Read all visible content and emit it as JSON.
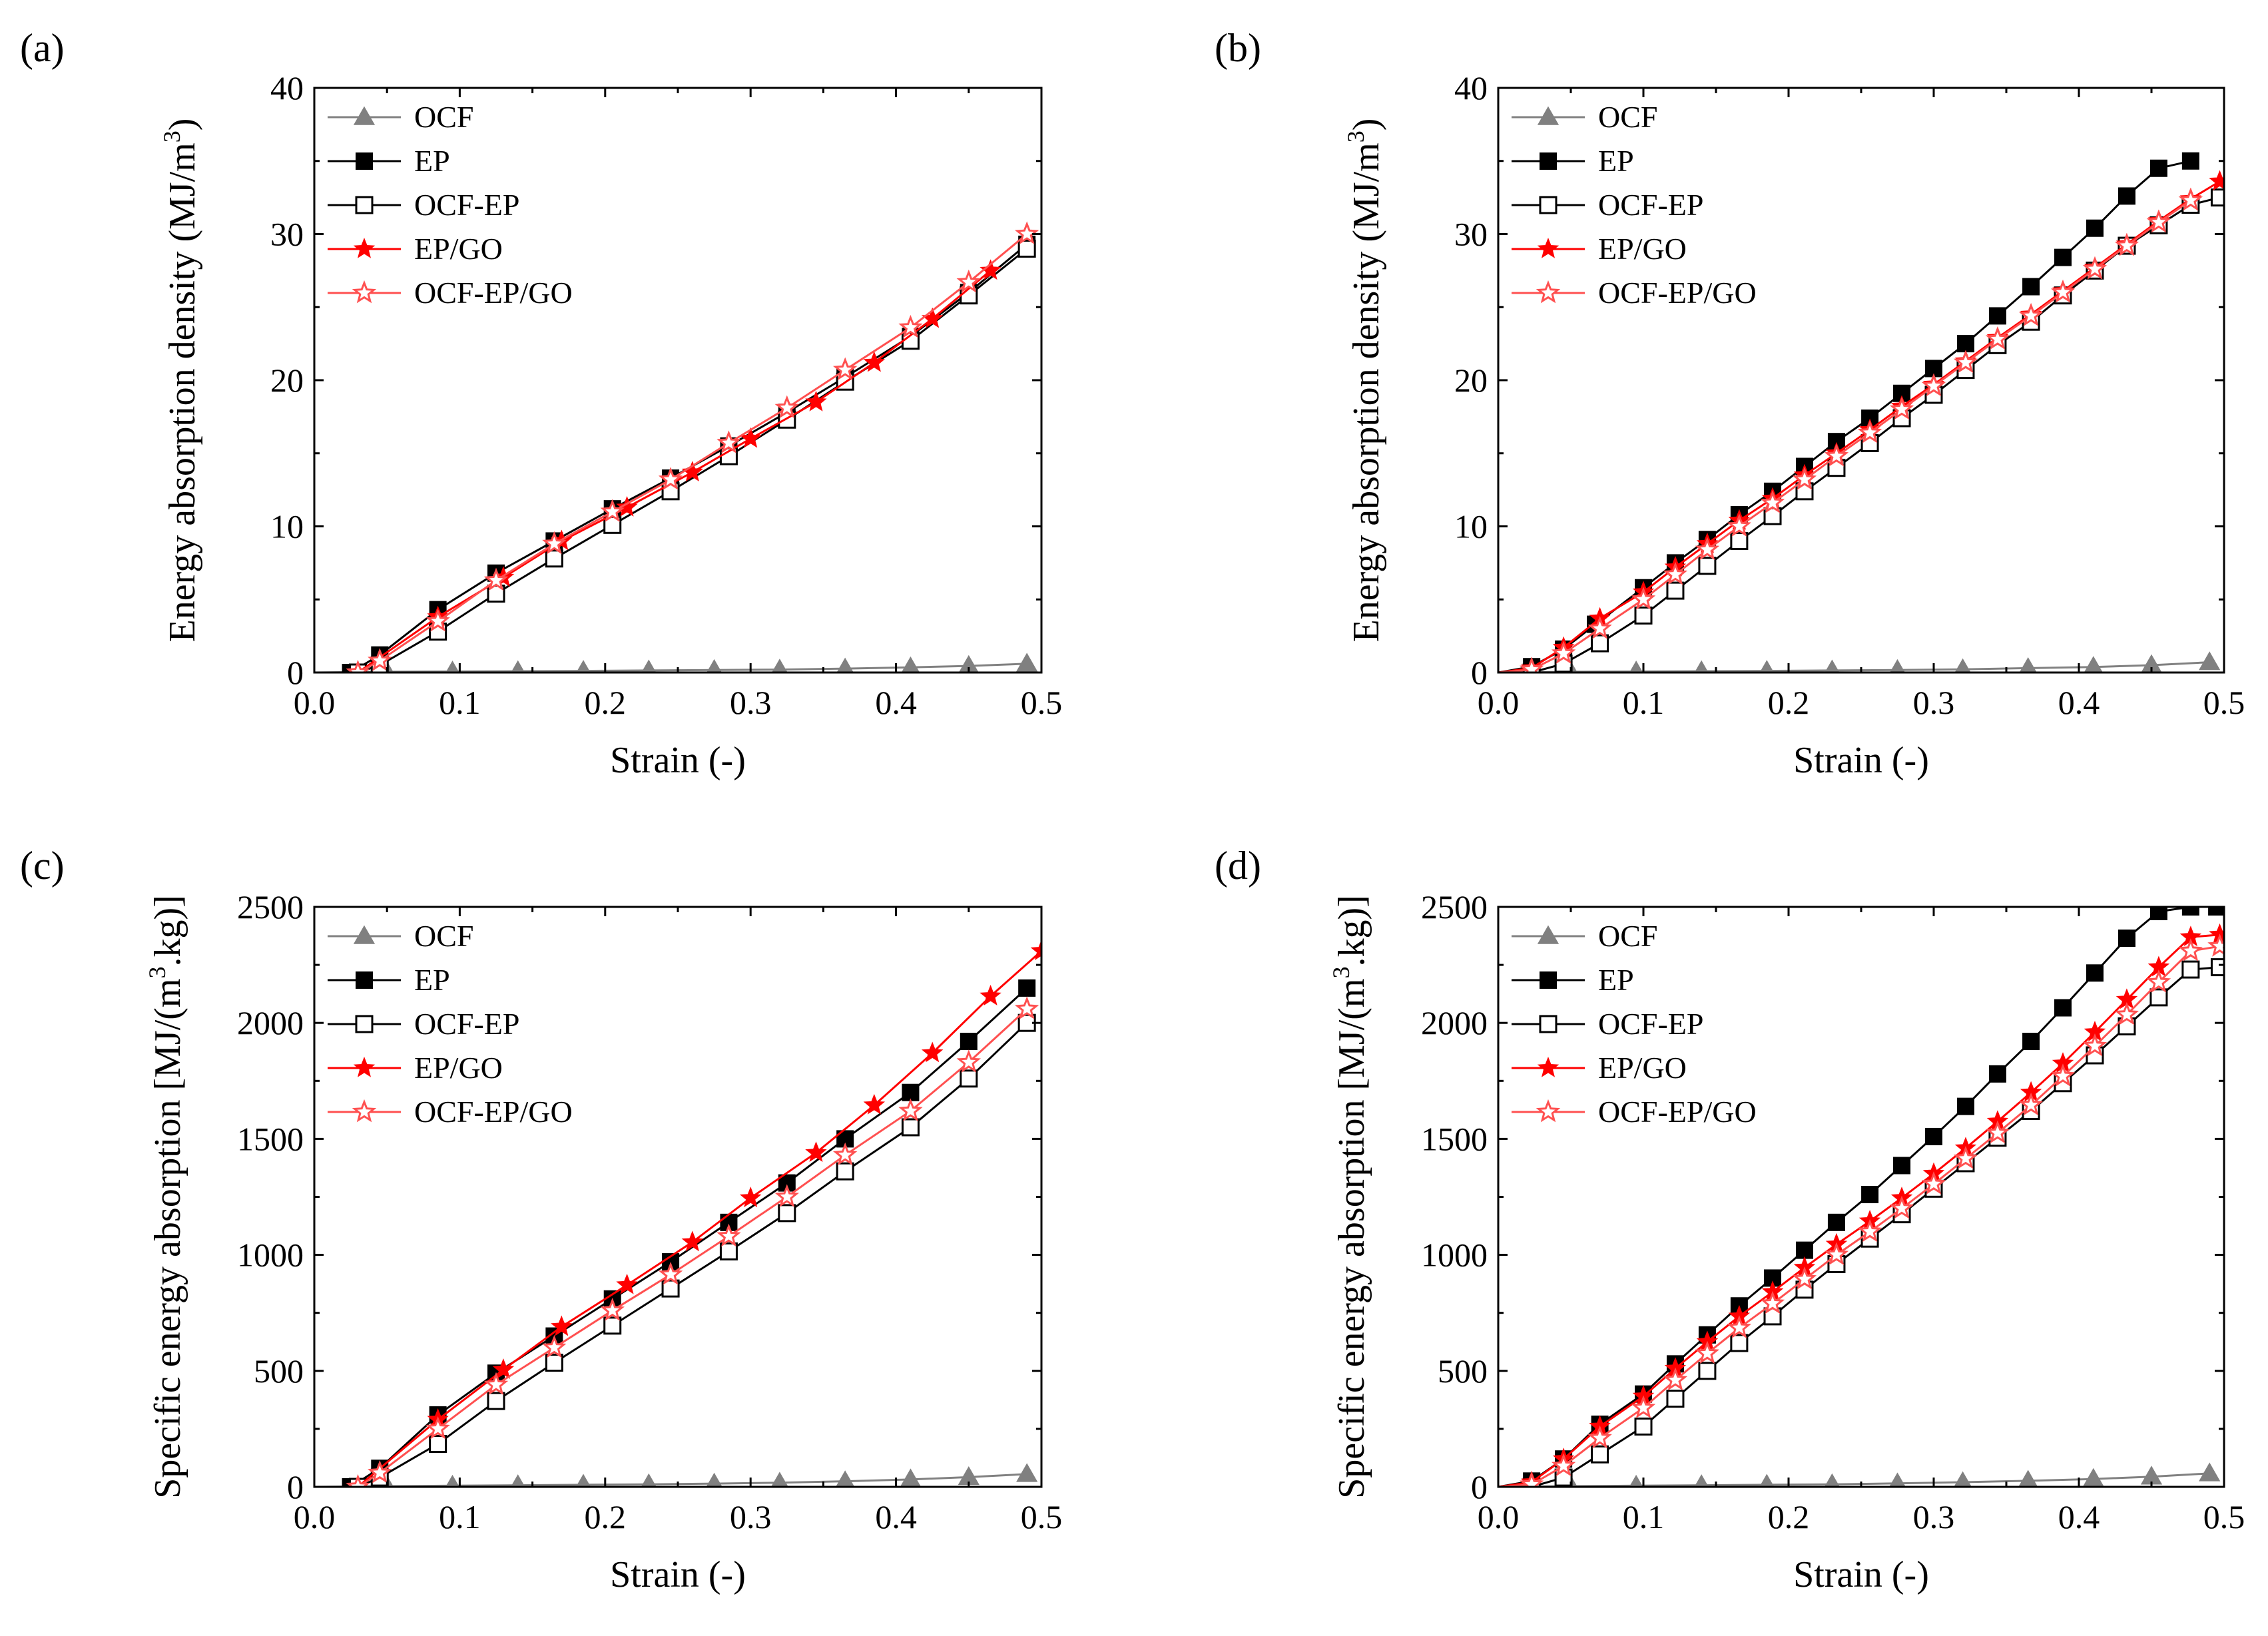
{
  "colors": {
    "black": "#000000",
    "gray": "#808080",
    "red": "#ff0000",
    "lightred": "#ff5050"
  },
  "chart_data": [
    {
      "panel": "(a)",
      "type": "line",
      "ylabel_main": "Energy absorption density (MJ/m",
      "ylabel_sup": "3",
      "ylabel_tail": ")",
      "xlabel": "Strain (-)",
      "xlim": [
        0.0,
        0.5
      ],
      "ylim": [
        0,
        40
      ],
      "xticks": [
        "0.0",
        "0.1",
        "0.2",
        "0.3",
        "0.4",
        "0.5"
      ],
      "yticks": [
        "0",
        "10",
        "20",
        "30",
        "40"
      ],
      "legend_position": "top-left",
      "series": [
        {
          "name": "OCF",
          "marker": "triangle",
          "color": "#808080",
          "x": [
            0.0,
            0.05,
            0.095,
            0.14,
            0.185,
            0.23,
            0.275,
            0.32,
            0.365,
            0.41,
            0.45,
            0.49
          ],
          "y": [
            0,
            0.05,
            0.07,
            0.09,
            0.11,
            0.14,
            0.17,
            0.2,
            0.27,
            0.35,
            0.45,
            0.6
          ]
        },
        {
          "name": "EP",
          "marker": "square-filled",
          "color": "#000000",
          "x": [
            0.0,
            0.025,
            0.045,
            0.085,
            0.125,
            0.165,
            0.205,
            0.245,
            0.285,
            0.325,
            0.365,
            0.41,
            0.45,
            0.49
          ],
          "y": [
            0,
            0.0,
            1.2,
            4.3,
            6.8,
            9.0,
            11.2,
            13.3,
            15.5,
            17.8,
            20.2,
            23.0,
            26.0,
            29.3
          ]
        },
        {
          "name": "OCF-EP",
          "marker": "square-open",
          "color": "#000000",
          "x": [
            0.0,
            0.03,
            0.045,
            0.085,
            0.125,
            0.165,
            0.205,
            0.245,
            0.285,
            0.325,
            0.365,
            0.41,
            0.45,
            0.49
          ],
          "y": [
            0,
            0.0,
            0.5,
            2.8,
            5.4,
            7.8,
            10.1,
            12.4,
            14.8,
            17.3,
            19.9,
            22.7,
            25.8,
            29.0
          ]
        },
        {
          "name": "EP/GO",
          "marker": "star-filled",
          "color": "#ff0000",
          "x": [
            0.0,
            0.03,
            0.085,
            0.13,
            0.17,
            0.215,
            0.26,
            0.3,
            0.345,
            0.385,
            0.425,
            0.465
          ],
          "y": [
            0,
            0.0,
            3.8,
            6.5,
            9.0,
            11.3,
            13.7,
            16.0,
            18.5,
            21.2,
            24.2,
            27.5
          ]
        },
        {
          "name": "OCF-EP/GO",
          "marker": "star-open",
          "color": "#ff5050",
          "x": [
            0.0,
            0.03,
            0.045,
            0.085,
            0.125,
            0.165,
            0.205,
            0.245,
            0.285,
            0.325,
            0.365,
            0.41,
            0.45,
            0.49
          ],
          "y": [
            0,
            0.0,
            0.8,
            3.5,
            6.3,
            8.8,
            11.0,
            13.2,
            15.7,
            18.1,
            20.7,
            23.6,
            26.7,
            30.0
          ]
        }
      ]
    },
    {
      "panel": "(b)",
      "type": "line",
      "ylabel_main": "Energy absorption density (MJ/m",
      "ylabel_sup": "3",
      "ylabel_tail": ")",
      "xlabel": "Strain (-)",
      "xlim": [
        0.0,
        0.5
      ],
      "ylim": [
        0,
        40
      ],
      "xticks": [
        "0.0",
        "0.1",
        "0.2",
        "0.3",
        "0.4",
        "0.5"
      ],
      "yticks": [
        "0",
        "10",
        "20",
        "30",
        "40"
      ],
      "legend_position": "top-left",
      "series": [
        {
          "name": "OCF",
          "marker": "triangle",
          "color": "#808080",
          "x": [
            0.0,
            0.05,
            0.095,
            0.14,
            0.185,
            0.23,
            0.275,
            0.32,
            0.365,
            0.41,
            0.45,
            0.49
          ],
          "y": [
            0,
            0.05,
            0.07,
            0.09,
            0.11,
            0.14,
            0.17,
            0.22,
            0.3,
            0.38,
            0.5,
            0.7
          ]
        },
        {
          "name": "EP",
          "marker": "square-filled",
          "color": "#000000",
          "x": [
            0.0,
            0.023,
            0.045,
            0.067,
            0.1,
            0.122,
            0.144,
            0.166,
            0.189,
            0.211,
            0.233,
            0.256,
            0.278,
            0.3,
            0.322,
            0.344,
            0.367,
            0.389,
            0.411,
            0.433,
            0.455,
            0.477
          ],
          "y": [
            0,
            0.4,
            1.6,
            3.3,
            5.8,
            7.5,
            9.1,
            10.8,
            12.4,
            14.1,
            15.8,
            17.4,
            19.1,
            20.8,
            22.5,
            24.4,
            26.4,
            28.4,
            30.4,
            32.6,
            34.5,
            35.0
          ]
        },
        {
          "name": "OCF-EP",
          "marker": "square-open",
          "color": "#000000",
          "x": [
            0.0,
            0.023,
            0.045,
            0.07,
            0.1,
            0.122,
            0.144,
            0.166,
            0.189,
            0.211,
            0.233,
            0.256,
            0.278,
            0.3,
            0.322,
            0.344,
            0.367,
            0.389,
            0.411,
            0.433,
            0.455,
            0.477,
            0.497
          ],
          "y": [
            0,
            0.0,
            0.6,
            2.0,
            3.9,
            5.6,
            7.3,
            9.0,
            10.7,
            12.4,
            14.0,
            15.7,
            17.4,
            19.0,
            20.7,
            22.4,
            24.0,
            25.8,
            27.5,
            29.2,
            30.6,
            32.0,
            32.5
          ]
        },
        {
          "name": "EP/GO",
          "marker": "star-filled",
          "color": "#ff0000",
          "x": [
            0.0,
            0.023,
            0.045,
            0.07,
            0.1,
            0.122,
            0.144,
            0.166,
            0.189,
            0.211,
            0.233,
            0.256,
            0.278,
            0.3,
            0.322,
            0.344,
            0.367,
            0.389,
            0.411,
            0.433,
            0.455,
            0.477,
            0.497
          ],
          "y": [
            0,
            0.3,
            1.7,
            3.7,
            5.5,
            7.2,
            8.8,
            10.4,
            11.9,
            13.5,
            15.0,
            16.6,
            18.2,
            19.7,
            21.3,
            22.9,
            24.5,
            26.1,
            27.7,
            29.3,
            30.9,
            32.4,
            33.6
          ]
        },
        {
          "name": "OCF-EP/GO",
          "marker": "star-open",
          "color": "#ff5050",
          "x": [
            0.0,
            0.023,
            0.045,
            0.07,
            0.1,
            0.122,
            0.144,
            0.166,
            0.189,
            0.211,
            0.233,
            0.256,
            0.278,
            0.3,
            0.322,
            0.344,
            0.367,
            0.389,
            0.411,
            0.433,
            0.455,
            0.477
          ],
          "y": [
            0,
            0.2,
            1.3,
            3.0,
            5.0,
            6.7,
            8.4,
            10.0,
            11.6,
            13.2,
            14.8,
            16.4,
            18.0,
            19.6,
            21.2,
            22.8,
            24.4,
            26.0,
            27.6,
            29.2,
            30.8,
            32.3
          ]
        }
      ]
    },
    {
      "panel": "(c)",
      "type": "line",
      "ylabel_main": "Specific energy absorption [MJ/(m",
      "ylabel_sup": "3",
      "ylabel_tail": ".kg)]",
      "xlabel": "Strain (-)",
      "xlim": [
        0.0,
        0.5
      ],
      "ylim": [
        0,
        2500
      ],
      "xticks": [
        "0.0",
        "0.1",
        "0.2",
        "0.3",
        "0.4",
        "0.5"
      ],
      "yticks": [
        "0",
        "500",
        "1000",
        "1500",
        "2000",
        "2500"
      ],
      "legend_position": "top-left",
      "series": [
        {
          "name": "OCF",
          "marker": "triangle",
          "color": "#808080",
          "x": [
            0.0,
            0.05,
            0.095,
            0.14,
            0.185,
            0.23,
            0.275,
            0.32,
            0.365,
            0.41,
            0.45,
            0.49
          ],
          "y": [
            0,
            3,
            5,
            7,
            9,
            11,
            14,
            18,
            24,
            32,
            42,
            55
          ]
        },
        {
          "name": "EP",
          "marker": "square-filled",
          "color": "#000000",
          "x": [
            0.0,
            0.025,
            0.045,
            0.085,
            0.125,
            0.165,
            0.205,
            0.245,
            0.285,
            0.325,
            0.365,
            0.41,
            0.45,
            0.49
          ],
          "y": [
            0,
            0,
            80,
            310,
            490,
            650,
            810,
            970,
            1140,
            1310,
            1500,
            1700,
            1920,
            2150
          ]
        },
        {
          "name": "OCF-EP",
          "marker": "square-open",
          "color": "#000000",
          "x": [
            0.0,
            0.03,
            0.045,
            0.085,
            0.125,
            0.165,
            0.205,
            0.245,
            0.285,
            0.325,
            0.365,
            0.41,
            0.45,
            0.49
          ],
          "y": [
            0,
            0,
            40,
            185,
            370,
            535,
            695,
            855,
            1015,
            1180,
            1360,
            1550,
            1760,
            2000
          ]
        },
        {
          "name": "EP/GO",
          "marker": "star-filled",
          "color": "#ff0000",
          "x": [
            0.0,
            0.03,
            0.085,
            0.13,
            0.17,
            0.215,
            0.26,
            0.3,
            0.345,
            0.385,
            0.425,
            0.465,
            0.5
          ],
          "y": [
            0,
            0,
            290,
            505,
            690,
            870,
            1055,
            1245,
            1440,
            1645,
            1870,
            2115,
            2310
          ]
        },
        {
          "name": "OCF-EP/GO",
          "marker": "star-open",
          "color": "#ff5050",
          "x": [
            0.0,
            0.03,
            0.045,
            0.085,
            0.125,
            0.165,
            0.205,
            0.245,
            0.285,
            0.325,
            0.365,
            0.41,
            0.45,
            0.49
          ],
          "y": [
            0,
            0,
            60,
            250,
            440,
            600,
            760,
            915,
            1080,
            1250,
            1430,
            1620,
            1830,
            2060
          ]
        }
      ]
    },
    {
      "panel": "(d)",
      "type": "line",
      "ylabel_main": "Specific energy absorption [MJ/(m",
      "ylabel_sup": "3",
      "ylabel_tail": ".kg)]",
      "xlabel": "Strain (-)",
      "xlim": [
        0.0,
        0.5
      ],
      "ylim": [
        0,
        2500
      ],
      "xticks": [
        "0.0",
        "0.1",
        "0.2",
        "0.3",
        "0.4",
        "0.5"
      ],
      "yticks": [
        "0",
        "500",
        "1000",
        "1500",
        "2000",
        "2500"
      ],
      "legend_position": "top-left",
      "series": [
        {
          "name": "OCF",
          "marker": "triangle",
          "color": "#808080",
          "x": [
            0.0,
            0.05,
            0.095,
            0.14,
            0.185,
            0.23,
            0.275,
            0.32,
            0.365,
            0.41,
            0.45,
            0.49
          ],
          "y": [
            0,
            3,
            5,
            7,
            9,
            11,
            15,
            20,
            26,
            34,
            44,
            58
          ]
        },
        {
          "name": "EP",
          "marker": "square-filled",
          "color": "#000000",
          "x": [
            0.0,
            0.023,
            0.045,
            0.07,
            0.1,
            0.122,
            0.144,
            0.166,
            0.189,
            0.211,
            0.233,
            0.256,
            0.278,
            0.3,
            0.322,
            0.344,
            0.367,
            0.389,
            0.411,
            0.433,
            0.455,
            0.477,
            0.495
          ],
          "y": [
            0,
            25,
            120,
            270,
            400,
            530,
            655,
            780,
            900,
            1020,
            1140,
            1260,
            1385,
            1510,
            1640,
            1780,
            1920,
            2065,
            2215,
            2365,
            2480,
            2500,
            2500
          ]
        },
        {
          "name": "OCF-EP",
          "marker": "square-open",
          "color": "#000000",
          "x": [
            0.0,
            0.023,
            0.045,
            0.07,
            0.1,
            0.122,
            0.144,
            0.166,
            0.189,
            0.211,
            0.233,
            0.256,
            0.278,
            0.3,
            0.322,
            0.344,
            0.367,
            0.389,
            0.411,
            0.433,
            0.455,
            0.477,
            0.497
          ],
          "y": [
            0,
            0,
            40,
            140,
            260,
            380,
            500,
            620,
            735,
            850,
            960,
            1070,
            1175,
            1285,
            1395,
            1505,
            1620,
            1740,
            1860,
            1985,
            2110,
            2230,
            2240
          ]
        },
        {
          "name": "EP/GO",
          "marker": "star-filled",
          "color": "#ff0000",
          "x": [
            0.0,
            0.023,
            0.045,
            0.07,
            0.1,
            0.122,
            0.144,
            0.166,
            0.189,
            0.211,
            0.233,
            0.256,
            0.278,
            0.3,
            0.322,
            0.344,
            0.367,
            0.389,
            0.411,
            0.433,
            0.455,
            0.477,
            0.497
          ],
          "y": [
            0,
            20,
            120,
            260,
            390,
            510,
            625,
            735,
            840,
            945,
            1045,
            1145,
            1245,
            1350,
            1460,
            1575,
            1700,
            1825,
            1960,
            2100,
            2240,
            2370,
            2380
          ]
        },
        {
          "name": "OCF-EP/GO",
          "marker": "star-open",
          "color": "#ff5050",
          "x": [
            0.0,
            0.023,
            0.045,
            0.07,
            0.1,
            0.122,
            0.144,
            0.166,
            0.189,
            0.211,
            0.233,
            0.256,
            0.278,
            0.3,
            0.322,
            0.344,
            0.367,
            0.389,
            0.411,
            0.433,
            0.455,
            0.477,
            0.497
          ],
          "y": [
            0,
            10,
            90,
            210,
            340,
            460,
            575,
            685,
            790,
            895,
            1000,
            1100,
            1200,
            1305,
            1415,
            1525,
            1645,
            1770,
            1900,
            2035,
            2175,
            2310,
            2330
          ]
        }
      ]
    }
  ]
}
